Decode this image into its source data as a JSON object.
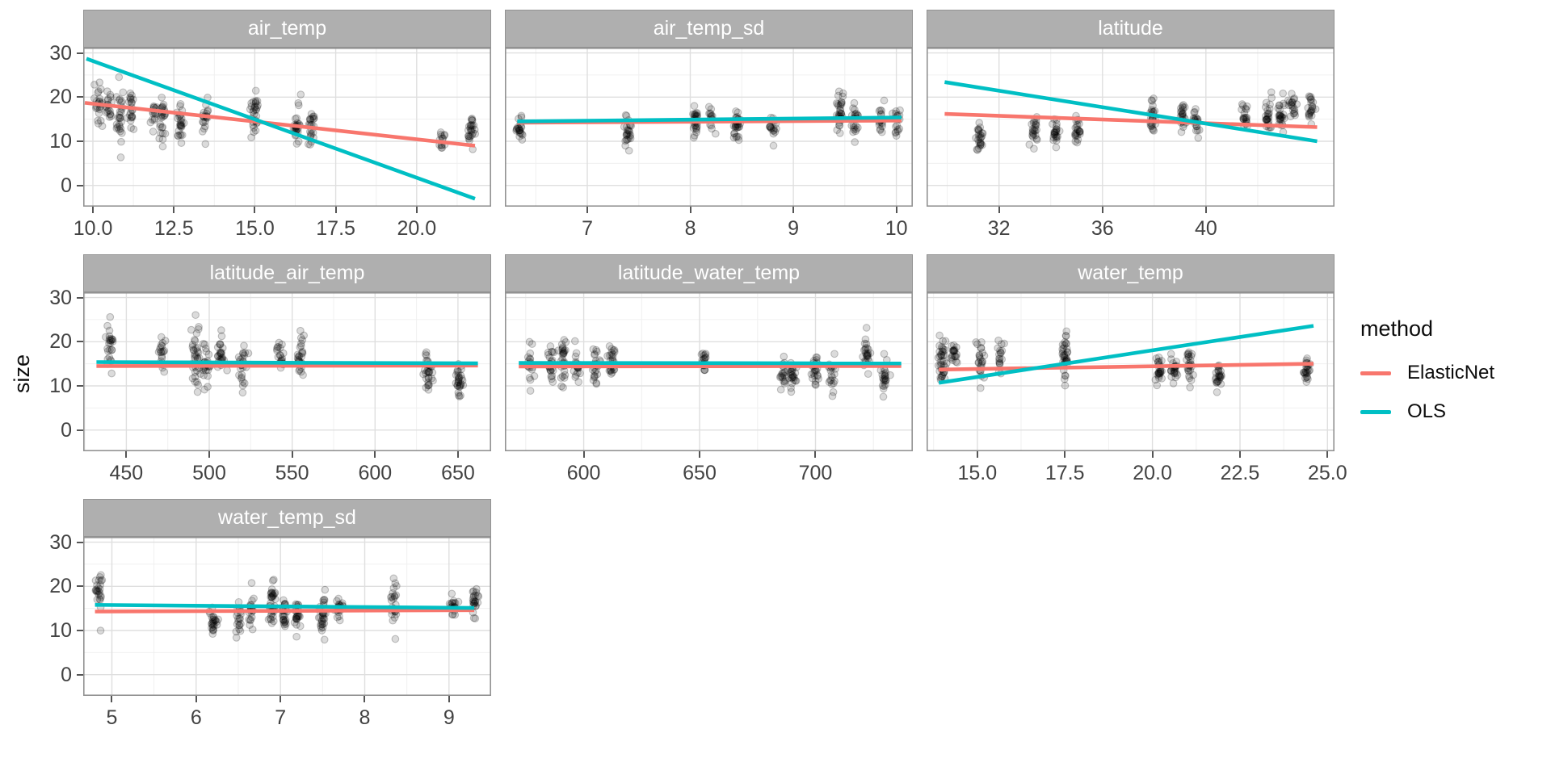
{
  "figure": {
    "ylabel": "size",
    "ylim": [
      -4.8,
      31.2
    ],
    "yticks": [
      0,
      10,
      20,
      30
    ],
    "ytick_labels": [
      "0",
      "10",
      "20",
      "30"
    ],
    "legend": {
      "title": "method",
      "entries": [
        {
          "label": "ElasticNet",
          "color": "#F8766D"
        },
        {
          "label": "OLS",
          "color": "#00BFC4"
        }
      ]
    },
    "colors": {
      "strip_fill": "#AFAFAF",
      "strip_text": "#FFFFFF",
      "panel_border": "#929292",
      "grid_major": "#DFDFDF",
      "grid_minor": "#F0F0F0",
      "axis_text": "#434343",
      "point_fill": "rgba(0,0,0,0.14)",
      "point_stroke": "rgba(0,0,0,0.22)"
    },
    "point_clusters_format": "[x, y_mean, y_sd, n_points]"
  },
  "chart_data": [
    {
      "facet": "air_temp",
      "type": "scatter",
      "row": 0,
      "col": 0,
      "xlim": [
        9.7,
        22.3
      ],
      "xticks": [
        10,
        12.5,
        15,
        17.5,
        20
      ],
      "xtick_labels": [
        "10.0",
        "12.5",
        "15.0",
        "17.5",
        "20.0"
      ],
      "lines": [
        {
          "method": "ElasticNet",
          "x": [
            9.75,
            21.8
          ],
          "y": [
            18.7,
            9.0
          ]
        },
        {
          "method": "OLS",
          "x": [
            9.8,
            21.8
          ],
          "y": [
            28.7,
            -3.0
          ]
        }
      ],
      "point_clusters": [
        [
          10.2,
          18.3,
          2.4,
          24
        ],
        [
          10.5,
          17.5,
          2.0,
          18
        ],
        [
          10.85,
          16.2,
          3.0,
          28
        ],
        [
          11.2,
          16.2,
          2.2,
          22
        ],
        [
          11.9,
          16.0,
          1.8,
          16
        ],
        [
          12.15,
          15.2,
          2.6,
          26
        ],
        [
          12.7,
          14.8,
          2.4,
          26
        ],
        [
          13.45,
          15.6,
          2.3,
          20
        ],
        [
          15.0,
          15.9,
          2.7,
          30
        ],
        [
          16.3,
          13.4,
          2.1,
          28
        ],
        [
          16.75,
          13.0,
          2.1,
          24
        ],
        [
          20.8,
          10.9,
          1.5,
          14
        ],
        [
          21.7,
          12.4,
          1.9,
          26
        ]
      ]
    },
    {
      "facet": "air_temp_sd",
      "type": "scatter",
      "row": 0,
      "col": 1,
      "xlim": [
        6.2,
        10.16
      ],
      "xticks": [
        7,
        8,
        9,
        10
      ],
      "xtick_labels": [
        "7",
        "8",
        "9",
        "10"
      ],
      "lines": [
        {
          "method": "ElasticNet",
          "x": [
            6.32,
            10.05
          ],
          "y": [
            14.2,
            14.7
          ]
        },
        {
          "method": "OLS",
          "x": [
            6.32,
            10.05
          ],
          "y": [
            14.5,
            15.4
          ]
        }
      ],
      "point_clusters": [
        [
          6.35,
          13.3,
          1.5,
          22
        ],
        [
          7.4,
          11.6,
          1.7,
          26
        ],
        [
          8.05,
          14.0,
          1.9,
          28
        ],
        [
          8.2,
          15.3,
          1.7,
          14
        ],
        [
          8.45,
          13.8,
          2.3,
          30
        ],
        [
          8.8,
          13.6,
          1.4,
          18
        ],
        [
          9.45,
          16.0,
          2.2,
          34
        ],
        [
          9.6,
          15.3,
          2.3,
          24
        ],
        [
          9.85,
          14.6,
          1.8,
          18
        ],
        [
          10.0,
          14.5,
          1.6,
          18
        ]
      ]
    },
    {
      "facet": "latitude",
      "type": "scatter",
      "row": 0,
      "col": 2,
      "xlim": [
        29.2,
        44.97
      ],
      "xticks": [
        32,
        36,
        40
      ],
      "xtick_labels": [
        "32",
        "36",
        "40"
      ],
      "lines": [
        {
          "method": "ElasticNet",
          "x": [
            29.9,
            44.3
          ],
          "y": [
            16.2,
            13.2
          ]
        },
        {
          "method": "OLS",
          "x": [
            29.9,
            44.3
          ],
          "y": [
            23.4,
            10.0
          ]
        }
      ],
      "point_clusters": [
        [
          31.25,
          10.6,
          1.5,
          26
        ],
        [
          33.4,
          13.0,
          1.7,
          24
        ],
        [
          34.2,
          12.1,
          1.7,
          24
        ],
        [
          35.05,
          12.3,
          1.7,
          24
        ],
        [
          37.9,
          15.8,
          2.0,
          26
        ],
        [
          39.1,
          15.6,
          1.7,
          24
        ],
        [
          39.65,
          15.2,
          1.8,
          20
        ],
        [
          41.5,
          15.3,
          1.5,
          20
        ],
        [
          42.4,
          16.6,
          2.0,
          26
        ],
        [
          42.9,
          16.8,
          2.1,
          26
        ],
        [
          43.35,
          17.1,
          1.8,
          20
        ],
        [
          44.05,
          17.2,
          1.9,
          22
        ]
      ]
    },
    {
      "facet": "latitude_air_temp",
      "type": "scatter",
      "row": 1,
      "col": 0,
      "xlim": [
        424,
        670
      ],
      "xticks": [
        450,
        500,
        550,
        600,
        650
      ],
      "xtick_labels": [
        "450",
        "500",
        "550",
        "600",
        "650"
      ],
      "lines": [
        {
          "method": "ElasticNet",
          "x": [
            432,
            662
          ],
          "y": [
            14.5,
            14.6
          ]
        },
        {
          "method": "OLS",
          "x": [
            432,
            662
          ],
          "y": [
            15.4,
            15.1
          ]
        }
      ],
      "point_clusters": [
        [
          440,
          18.6,
          2.4,
          26
        ],
        [
          472,
          17.1,
          2.1,
          20
        ],
        [
          492,
          16.5,
          3.3,
          36
        ],
        [
          498,
          14.6,
          2.3,
          24
        ],
        [
          507,
          17.4,
          2.2,
          26
        ],
        [
          520,
          15.5,
          2.6,
          26
        ],
        [
          543,
          16.6,
          2.3,
          20
        ],
        [
          555,
          16.6,
          2.5,
          26
        ],
        [
          632,
          12.6,
          2.1,
          32
        ],
        [
          651,
          11.6,
          2.1,
          30
        ]
      ]
    },
    {
      "facet": "latitude_water_temp",
      "type": "scatter",
      "row": 1,
      "col": 1,
      "xlim": [
        566,
        742
      ],
      "xticks": [
        600,
        650,
        700
      ],
      "xtick_labels": [
        "600",
        "650",
        "700"
      ],
      "lines": [
        {
          "method": "ElasticNet",
          "x": [
            572,
            737
          ],
          "y": [
            14.4,
            14.5
          ]
        },
        {
          "method": "OLS",
          "x": [
            572,
            737
          ],
          "y": [
            15.2,
            15.1
          ]
        }
      ],
      "point_clusters": [
        [
          577,
          14.6,
          1.8,
          20
        ],
        [
          586,
          14.5,
          2.2,
          24
        ],
        [
          591,
          16.0,
          2.7,
          30
        ],
        [
          597,
          14.3,
          2.3,
          20
        ],
        [
          605,
          14.0,
          2.2,
          24
        ],
        [
          612,
          15.4,
          2.3,
          26
        ],
        [
          652,
          15.5,
          1.9,
          20
        ],
        [
          686,
          13.1,
          1.7,
          20
        ],
        [
          690,
          12.1,
          1.8,
          24
        ],
        [
          700,
          13.4,
          1.8,
          24
        ],
        [
          707,
          13.4,
          2.0,
          20
        ],
        [
          722,
          16.4,
          2.0,
          26
        ],
        [
          730,
          12.1,
          1.9,
          24
        ]
      ]
    },
    {
      "facet": "water_temp",
      "type": "scatter",
      "row": 1,
      "col": 2,
      "xlim": [
        13.55,
        25.2
      ],
      "xticks": [
        15,
        17.5,
        20,
        22.5,
        25
      ],
      "xtick_labels": [
        "15.0",
        "17.5",
        "20.0",
        "22.5",
        "25.0"
      ],
      "lines": [
        {
          "method": "ElasticNet",
          "x": [
            13.9,
            24.6
          ],
          "y": [
            13.7,
            15.0
          ]
        },
        {
          "method": "OLS",
          "x": [
            13.9,
            24.6
          ],
          "y": [
            10.7,
            23.6
          ]
        }
      ],
      "point_clusters": [
        [
          14.0,
          15.6,
          2.8,
          40
        ],
        [
          14.35,
          16.6,
          2.1,
          20
        ],
        [
          15.1,
          15.1,
          2.5,
          24
        ],
        [
          15.65,
          15.6,
          2.3,
          18
        ],
        [
          17.5,
          16.1,
          2.3,
          36
        ],
        [
          20.2,
          13.6,
          1.6,
          26
        ],
        [
          20.6,
          13.9,
          1.6,
          24
        ],
        [
          21.05,
          14.4,
          1.7,
          26
        ],
        [
          21.9,
          12.4,
          1.5,
          26
        ],
        [
          24.4,
          13.3,
          1.6,
          26
        ]
      ]
    },
    {
      "facet": "water_temp_sd",
      "type": "scatter",
      "row": 2,
      "col": 0,
      "xlim": [
        4.66,
        9.5
      ],
      "xticks": [
        5,
        6,
        7,
        8,
        9
      ],
      "xtick_labels": [
        "5",
        "6",
        "7",
        "8",
        "9"
      ],
      "lines": [
        {
          "method": "ElasticNet",
          "x": [
            4.8,
            9.3
          ],
          "y": [
            14.3,
            14.6
          ]
        },
        {
          "method": "OLS",
          "x": [
            4.8,
            9.3
          ],
          "y": [
            15.8,
            15.1
          ]
        }
      ],
      "point_clusters": [
        [
          4.85,
          19.4,
          1.9,
          24
        ],
        [
          4.88,
          10.0,
          0.05,
          1
        ],
        [
          6.2,
          11.6,
          1.6,
          26
        ],
        [
          6.5,
          12.6,
          1.8,
          20
        ],
        [
          6.65,
          14.1,
          1.8,
          20
        ],
        [
          6.9,
          16.0,
          3.2,
          36
        ],
        [
          7.05,
          13.6,
          2.0,
          24
        ],
        [
          7.2,
          13.1,
          2.0,
          24
        ],
        [
          7.5,
          13.1,
          2.2,
          30
        ],
        [
          7.7,
          15.1,
          2.0,
          24
        ],
        [
          8.35,
          15.6,
          2.6,
          26
        ],
        [
          9.05,
          15.1,
          1.6,
          20
        ],
        [
          9.3,
          16.4,
          1.8,
          24
        ]
      ]
    }
  ]
}
